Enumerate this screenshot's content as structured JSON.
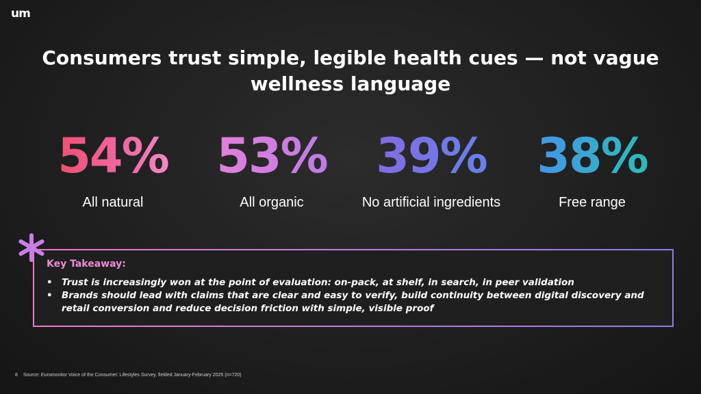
{
  "logo": "um",
  "title": "Consumers trust simple, legible health cues — not vague wellness language",
  "stats": [
    {
      "value": "54%",
      "label": "All natural"
    },
    {
      "value": "53%",
      "label": "All organic"
    },
    {
      "value": "39%",
      "label": "No artificial ingredients"
    },
    {
      "value": "38%",
      "label": "Free range"
    }
  ],
  "takeaway": {
    "title": "Key Takeaway:",
    "bullets": [
      "Trust is increasingly won at the point of evaluation: on-pack, at shelf, in search, in peer validation",
      "Brands should lead with claims that are clear and easy to verify, build continuity between digital discovery and retail conversion and reduce decision friction with simple, visible proof"
    ]
  },
  "footer": {
    "page_number": "8",
    "source": "Source: Euromonitor Voice of the Consumer: Lifestyles Survey, fielded January-February 2025 (n=720)"
  },
  "colors": {
    "accent_pink": "#ee8bd9",
    "accent_purple": "#b97ee4",
    "background": "#1e1e1e"
  }
}
